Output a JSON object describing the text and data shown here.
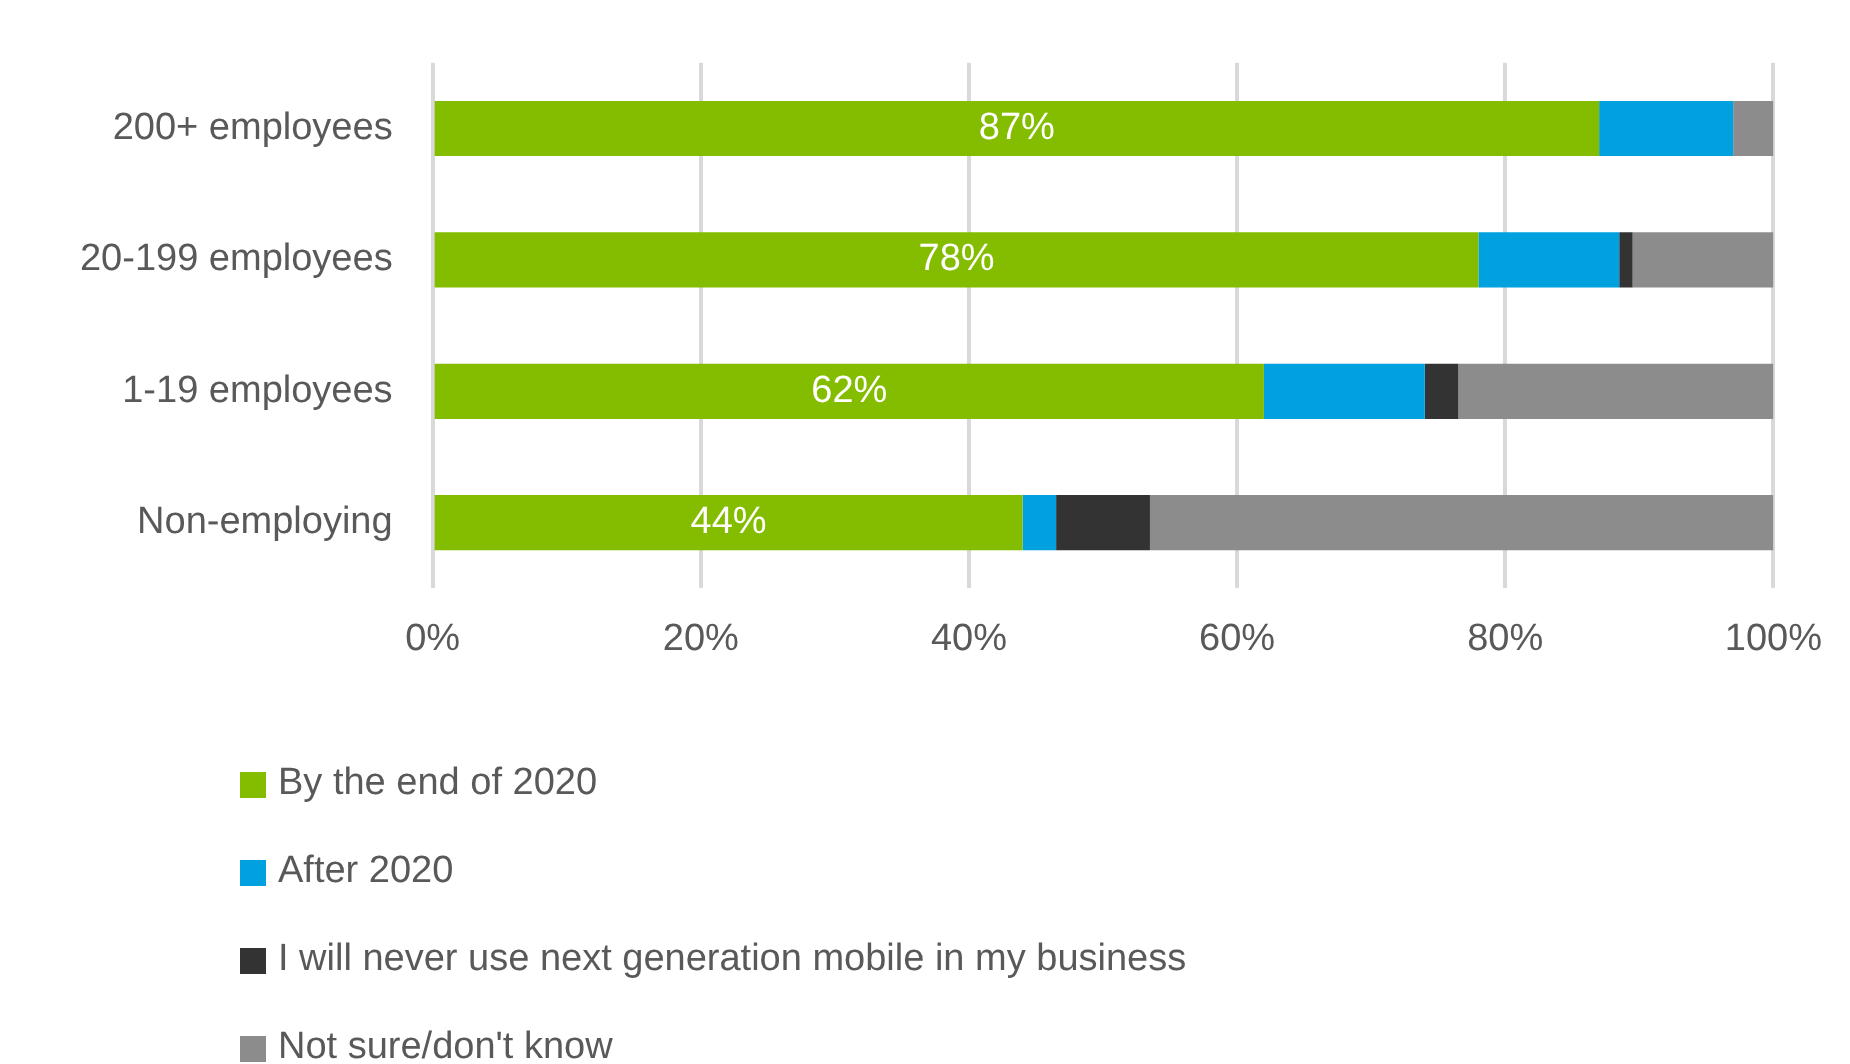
{
  "chart_data": {
    "type": "bar",
    "orientation": "horizontal",
    "stacked": true,
    "categories": [
      "200+ employees",
      "20-199 employees",
      "1-19 employees",
      "Non-employing"
    ],
    "series": [
      {
        "name": "By the end of 2020",
        "color": "#84bd00",
        "values": [
          87,
          78,
          62,
          44
        ],
        "value_labels": [
          "87%",
          "78%",
          "62%",
          "44%"
        ]
      },
      {
        "name": "After 2020",
        "color": "#00a1de",
        "values": [
          10,
          10.5,
          12,
          2.5
        ]
      },
      {
        "name": "I will never use next generation mobile in my business",
        "color": "#333333",
        "values": [
          0,
          1,
          2.5,
          7
        ]
      },
      {
        "name": "Not sure/don't know",
        "color": "#8c8c8c",
        "values": [
          3,
          10.5,
          23.5,
          46.5
        ]
      }
    ],
    "xlim": [
      0,
      100
    ],
    "xticks": [
      {
        "value": 0,
        "label": "0%"
      },
      {
        "value": 20,
        "label": "20%"
      },
      {
        "value": 40,
        "label": "40%"
      },
      {
        "value": 60,
        "label": "60%"
      },
      {
        "value": 80,
        "label": "80%"
      },
      {
        "value": 100,
        "label": "100%"
      }
    ],
    "grid": "x",
    "legend": "bottom"
  }
}
